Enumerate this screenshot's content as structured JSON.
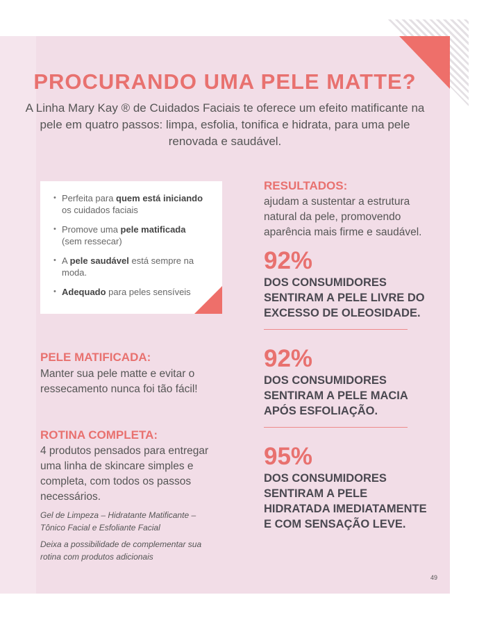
{
  "title": "PROCURANDO UMA PELE MATTE?",
  "intro": "A Linha Mary Kay ® de Cuidados Faciais te oferece um efeito matificante na pele em quatro passos: limpa, esfolia, tonifica e hidrata, para uma pele renovada e saudável.",
  "card": {
    "items": [
      {
        "pre": "Perfeita para ",
        "bold": "quem está iniciando",
        "post": " os cuidados faciais"
      },
      {
        "pre": "Promove uma ",
        "bold": "pele matificada",
        "post": " (sem ressecar)"
      },
      {
        "pre": "A ",
        "bold": "pele saudável",
        "post": " está sempre na moda."
      },
      {
        "pre": "",
        "bold": "Adequado",
        "post": " para peles sensíveis"
      }
    ]
  },
  "pele_matificada": {
    "heading": "PELE MATIFICADA:",
    "text": "Manter sua pele matte e evitar o ressecamento nunca foi tão fácil!"
  },
  "rotina": {
    "heading": "ROTINA COMPLETA:",
    "text": "4 produtos pensados para entregar uma linha de skincare simples e completa, com todos os passos necessários.",
    "products": "Gel de Limpeza – Hidratante Matificante – Tônico Facial e Esfoliante Facial",
    "note": "Deixa a possibilidade de complementar sua rotina com produtos adicionais"
  },
  "resultados": {
    "heading": "RESULTADOS:",
    "text": "ajudam a sustentar a estrutura natural da pele, promovendo aparência mais firme e saudável."
  },
  "stats": [
    {
      "percent": "92%",
      "text": "DOS CONSUMIDORES SENTIRAM A PELE LIVRE DO EXCESSO DE OLEOSIDADE."
    },
    {
      "percent": "92%",
      "text": "DOS CONSUMIDORES SENTIRAM A PELE MACIA APÓS ESFOLIAÇÃO."
    },
    {
      "percent": "95%",
      "text": "DOS CONSUMIDORES SENTIRAM A PELE HIDRATADA IMEDIATAMENTE E COM SENSAÇÃO LEVE."
    }
  ],
  "page_number": "49",
  "colors": {
    "accent": "#e8716f",
    "panel": "#f2dde7",
    "corner": "#ee6f6a",
    "stat_text": "#4a4850"
  }
}
